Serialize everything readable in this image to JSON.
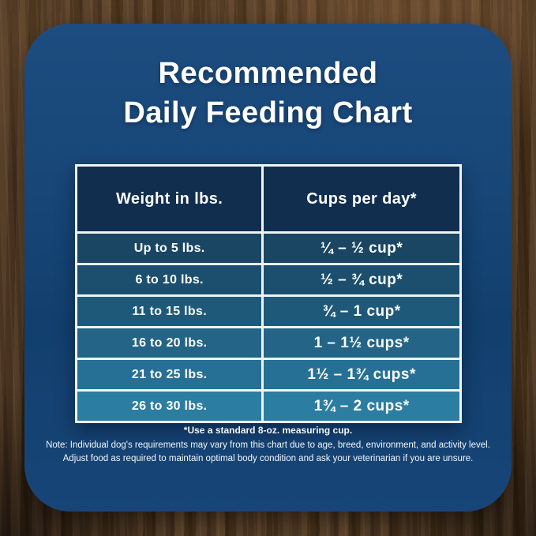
{
  "title": {
    "line1": "Recommended",
    "line2": "Daily Feeding Chart"
  },
  "table": {
    "headers": {
      "weight": "Weight in lbs.",
      "cups": "Cups per day*"
    },
    "rows": [
      {
        "weight": "Up to 5 lbs.",
        "cups": "¼ – ½ cup*"
      },
      {
        "weight": "6 to 10 lbs.",
        "cups": "½ – ¾ cup*"
      },
      {
        "weight": "11 to 15 lbs.",
        "cups": "¾ – 1 cup*"
      },
      {
        "weight": "16 to 20 lbs.",
        "cups": "1 – 1½ cups*"
      },
      {
        "weight": "21 to 25 lbs.",
        "cups": "1½ – 1¾ cups*"
      },
      {
        "weight": "26 to 30 lbs.",
        "cups": "1¾ – 2 cups*"
      }
    ],
    "header_color": "#112e4e",
    "row_colors": [
      "#1a4663",
      "#1c4f6d",
      "#1f5979",
      "#236487",
      "#277095",
      "#2c7da2"
    ],
    "border_color": "#eef4f6"
  },
  "footnotes": {
    "measuring": "*Use a standard 8-oz. measuring cup.",
    "note_line1": "Note: Individual dog's requirements may vary from this chart due to age, breed, environment, and activity level.",
    "note_line2": "Adjust food as required to maintain optimal body condition and ask your veterinarian if you are unsure."
  },
  "colors": {
    "card_navy": "#174677",
    "wood_base": "#4a3320",
    "text": "#ffffff"
  },
  "chart_data": {
    "type": "table",
    "title": "Recommended Daily Feeding Chart",
    "columns": [
      "Weight in lbs.",
      "Cups per day*"
    ],
    "rows": [
      [
        "Up to 5 lbs.",
        "¼ – ½ cup*"
      ],
      [
        "6 to 10 lbs.",
        "½ – ¾ cup*"
      ],
      [
        "11 to 15 lbs.",
        "¾ – 1 cup*"
      ],
      [
        "16 to 20 lbs.",
        "1 – 1½ cups*"
      ],
      [
        "21 to 25 lbs.",
        "1½ – 1¾ cups*"
      ],
      [
        "26 to 30 lbs.",
        "1¾ – 2 cups*"
      ]
    ],
    "footnote": "*Use a standard 8-oz. measuring cup.",
    "notes": "Individual dog's requirements may vary from this chart due to age, breed, environment, and activity level. Adjust food as required to maintain optimal body condition and ask your veterinarian if you are unsure."
  }
}
